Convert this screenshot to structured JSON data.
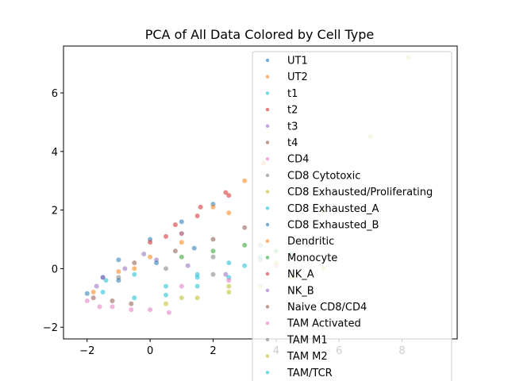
{
  "chart_data": {
    "type": "scatter",
    "title": "PCA of All Data Colored by Cell Type",
    "xlabel": "",
    "ylabel": "",
    "xlim": [
      -2.75,
      9.75
    ],
    "ylim": [
      -2.4,
      7.6
    ],
    "x_ticks": [
      -2,
      0,
      2,
      4,
      6,
      8
    ],
    "y_ticks": [
      -2,
      0,
      2,
      4,
      6
    ],
    "x_tick_labels": [
      "−2",
      "0",
      "2",
      "4",
      "6",
      "8"
    ],
    "y_tick_labels": [
      "−2",
      "0",
      "2",
      "4",
      "6"
    ],
    "grid": false,
    "legend_position": "upper right",
    "series": [
      {
        "name": "UT1",
        "color": "#1f77b4",
        "x": [
          -2.0,
          -1.5,
          -1.0,
          0.0,
          1.0,
          2.0
        ],
        "y": [
          -0.85,
          -0.3,
          0.3,
          1.0,
          1.6,
          2.2
        ]
      },
      {
        "name": "UT2",
        "color": "#ff7f0e",
        "x": [
          -1.8,
          -1.0,
          0.0,
          1.0,
          2.0,
          3.0,
          3.6
        ],
        "y": [
          -0.8,
          -0.1,
          0.4,
          1.2,
          2.1,
          3.0,
          3.6
        ]
      },
      {
        "name": "t1",
        "color": "#17becf",
        "x": [
          -1.4,
          -0.5,
          0.5,
          1.5,
          2.5,
          3.5
        ],
        "y": [
          -0.4,
          -0.2,
          -0.6,
          -0.3,
          0.2,
          0.4
        ]
      },
      {
        "name": "t2",
        "color": "#d62728",
        "x": [
          0.0,
          0.8,
          1.6,
          2.4
        ],
        "y": [
          0.9,
          1.5,
          2.1,
          2.6
        ]
      },
      {
        "name": "t3",
        "color": "#9467bd",
        "x": [
          -1.7,
          -0.8,
          0.2,
          1.2,
          2.4
        ],
        "y": [
          -0.6,
          0.0,
          0.3,
          0.1,
          -0.2
        ]
      },
      {
        "name": "t4",
        "color": "#8c564b",
        "x": [
          -0.5,
          0.8,
          2.0,
          3.0
        ],
        "y": [
          0.2,
          0.6,
          1.0,
          1.4
        ]
      },
      {
        "name": "CD4",
        "color": "#e377c2",
        "x": [
          -2.0,
          -1.6,
          -1.2,
          -0.6,
          0.0,
          0.6
        ],
        "y": [
          -1.1,
          -1.3,
          -1.3,
          -1.4,
          -1.4,
          -1.5
        ]
      },
      {
        "name": "CD8 Cytotoxic",
        "color": "#7f7f7f",
        "x": [
          -1.0,
          0.5,
          2.0,
          3.5
        ],
        "y": [
          -0.3,
          0.0,
          0.4,
          0.8
        ]
      },
      {
        "name": "CD8 Exhausted/Proliferating",
        "color": "#bcbd22",
        "x": [
          0.5,
          1.5,
          2.5,
          3.5,
          4.5,
          5.5
        ],
        "y": [
          -1.2,
          -1.0,
          -0.8,
          -0.6,
          -0.3,
          0.0
        ]
      },
      {
        "name": "CD8 Exhausted_A",
        "color": "#17becf",
        "x": [
          -1.5,
          -0.5,
          0.5,
          1.5,
          2.5
        ],
        "y": [
          -0.8,
          -1.0,
          -0.9,
          -0.6,
          -0.3
        ]
      },
      {
        "name": "CD8 Exhausted_B",
        "color": "#1f77b4",
        "x": [
          -1.0,
          0.2,
          1.4
        ],
        "y": [
          -0.4,
          0.2,
          0.7
        ]
      },
      {
        "name": "Dendritic",
        "color": "#ff7f0e",
        "x": [
          -0.5,
          1.0,
          2.5
        ],
        "y": [
          0.0,
          0.9,
          1.9
        ]
      },
      {
        "name": "Monocyte",
        "color": "#2ca02c",
        "x": [
          1.0,
          2.0,
          3.0,
          4.0
        ],
        "y": [
          0.4,
          0.6,
          0.8,
          0.6
        ]
      },
      {
        "name": "NK_A",
        "color": "#d62728",
        "x": [
          0.5,
          1.5,
          2.5
        ],
        "y": [
          1.1,
          1.8,
          2.5
        ]
      },
      {
        "name": "NK_B",
        "color": "#9467bd",
        "x": [
          -1.5,
          -0.2,
          1.0
        ],
        "y": [
          -0.3,
          0.5,
          1.2
        ]
      },
      {
        "name": "Naive CD8/CD4",
        "color": "#8c564b",
        "x": [
          -1.8,
          -1.2,
          -0.6
        ],
        "y": [
          -1.0,
          -1.1,
          -1.2
        ]
      },
      {
        "name": "TAM Activated",
        "color": "#e377c2",
        "x": [
          1.0,
          2.5,
          4.0
        ],
        "y": [
          -0.6,
          -0.4,
          0.1
        ]
      },
      {
        "name": "TAM M1",
        "color": "#7f7f7f",
        "x": [
          2.0,
          3.5,
          5.0
        ],
        "y": [
          -0.2,
          0.3,
          0.8
        ]
      },
      {
        "name": "TAM M2",
        "color": "#bcbd22",
        "x": [
          1.0,
          2.5,
          4.0,
          5.5,
          7.0,
          8.2
        ],
        "y": [
          -1.0,
          -0.6,
          0.2,
          2.0,
          4.5,
          7.2
        ]
      },
      {
        "name": "TAM/TCR",
        "color": "#17becf",
        "x": [
          1.5,
          3.0,
          4.5
        ],
        "y": [
          -0.2,
          0.1,
          0.5
        ]
      }
    ]
  }
}
